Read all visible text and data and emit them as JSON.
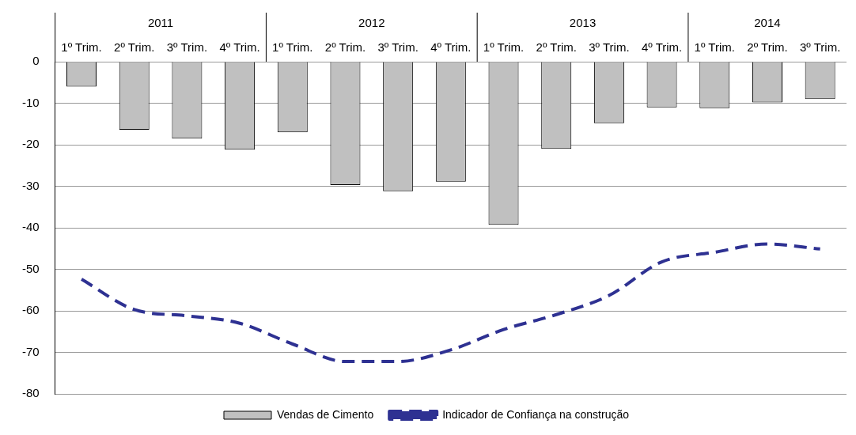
{
  "chart_data": {
    "type": "bar",
    "categories": [
      "1º Trim.",
      "2º Trim.",
      "3º Trim.",
      "4º Trim.",
      "1º Trim.",
      "2º Trim.",
      "3º Trim.",
      "4º Trim.",
      "1º Trim.",
      "2º Trim.",
      "3º Trim.",
      "4º Trim.",
      "1º Trim.",
      "2º Trim.",
      "3º Trim."
    ],
    "annotations": [
      "2011",
      "2012",
      "2013",
      "2014"
    ],
    "series": [
      {
        "name": "Vendas de Cimento",
        "color": "#c0c0c0",
        "values": [
          -6,
          -16.4,
          -18.5,
          -21.2,
          -17,
          -29.7,
          -31.2,
          -28.9,
          -39.3,
          -21,
          -14.8,
          -11,
          -11.2,
          -9.8,
          -9
        ]
      },
      {
        "name": "Indicador de Confiança na construção",
        "type": "line",
        "color": "#2e3192",
        "line_style": "dashed",
        "values": [
          -52.4,
          -59.7,
          -61.2,
          -63,
          -68,
          -72.2,
          -72.2,
          -69.4,
          -64.5,
          -60.9,
          -56.3,
          -48.2,
          -45.9,
          -43.9,
          -45.1
        ]
      }
    ],
    "ylim": [
      -80,
      0
    ],
    "yticks": [
      -80,
      -70,
      -60,
      -50,
      -40,
      -30,
      -20,
      -10,
      0
    ],
    "grid": "y",
    "legend": "bottom",
    "marker": "none"
  }
}
